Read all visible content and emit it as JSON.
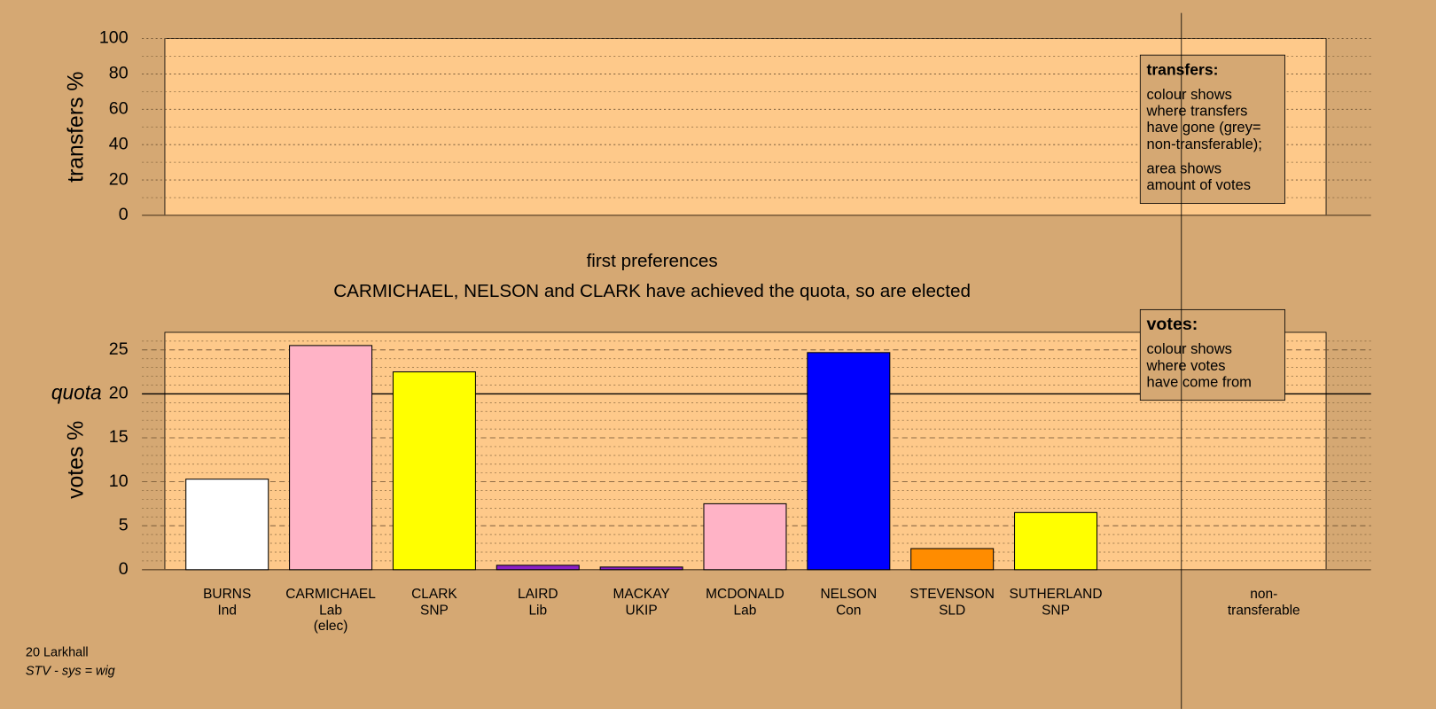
{
  "chart_data": [
    {
      "type": "bar",
      "ylabel": "transfers %",
      "ylim": [
        0,
        100
      ],
      "yticks": [
        0,
        20,
        40,
        60,
        80,
        100
      ],
      "minor_yticks": [
        10,
        30,
        50,
        70,
        90
      ],
      "grid_style": "dotted",
      "legend": {
        "title": "transfers:",
        "paragraphs": [
          [
            "colour shows",
            "where transfers",
            "have gone (grey=",
            "non-transferable);"
          ],
          [
            "area shows",
            "amount of votes"
          ]
        ]
      }
    },
    {
      "type": "bar",
      "title": "first preferences",
      "subtitle": "CARMICHAEL, NELSON and CLARK have achieved the quota, so are elected",
      "ylabel": "votes %",
      "ylim": [
        0,
        27
      ],
      "yticks": [
        0,
        5,
        10,
        15,
        20,
        25
      ],
      "minor_yticks": [
        1,
        2,
        3,
        4,
        6,
        7,
        8,
        9,
        11,
        12,
        13,
        14,
        16,
        17,
        18,
        19,
        21,
        22,
        23,
        24,
        26
      ],
      "grid_style": "dashed",
      "quota": {
        "value": 20,
        "label": "quota"
      },
      "categories": [
        "BURNS",
        "CARMICHAEL",
        "CLARK",
        "LAIRD",
        "MACKAY",
        "MCDONALD",
        "NELSON",
        "STEVENSON",
        "SUTHERLAND"
      ],
      "parties": [
        "Ind",
        "Lab",
        "SNP",
        "Lib",
        "UKIP",
        "Lab",
        "Con",
        "SLD",
        "SNP"
      ],
      "notes": [
        null,
        "(elec)",
        null,
        null,
        null,
        null,
        null,
        null,
        null
      ],
      "values": [
        10.3,
        25.5,
        22.5,
        0.5,
        0.3,
        7.5,
        24.7,
        2.4,
        6.5
      ],
      "colors": [
        "#ffffff",
        "#ffb3c6",
        "#ffff00",
        "#8b1fc6",
        "#8b1fc6",
        "#ffb3c6",
        "#0000ff",
        "#ff8c00",
        "#ffff00"
      ],
      "extra_category": [
        "non-",
        "transferable"
      ],
      "legend": {
        "title": "votes:",
        "paragraphs": [
          [
            "colour shows",
            "where votes",
            "have come from"
          ]
        ]
      }
    }
  ],
  "footer": {
    "place": "20 Larkhall",
    "system": "STV - sys = wig"
  }
}
